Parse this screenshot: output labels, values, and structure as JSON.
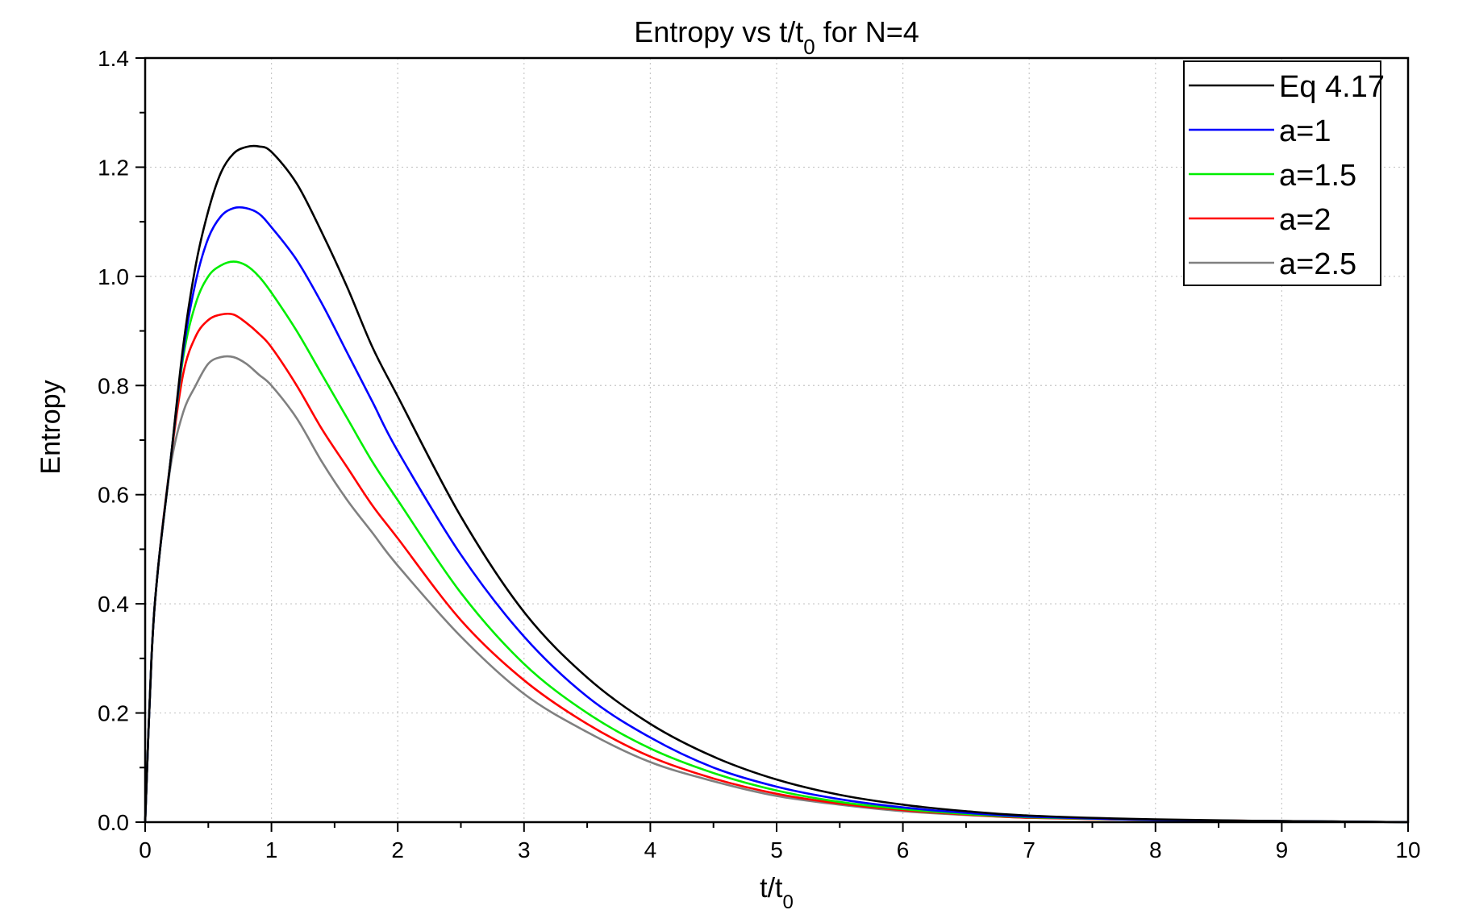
{
  "chart_data": {
    "type": "line",
    "title": "Entropy vs t/t",
    "title_sub": "0",
    "title_suffix": " for N=4",
    "xlabel": "t/t",
    "xlabel_sub": "0",
    "ylabel": "Entropy",
    "xlim": [
      0,
      10
    ],
    "ylim": [
      0,
      1.4
    ],
    "xticks": [
      0,
      1,
      2,
      3,
      4,
      5,
      6,
      7,
      8,
      9,
      10
    ],
    "xtick_labels": [
      "0",
      "1",
      "2",
      "3",
      "4",
      "5",
      "6",
      "7",
      "8",
      "9",
      "10"
    ],
    "yticks": [
      0,
      0.2,
      0.4,
      0.6,
      0.8,
      1.0,
      1.2,
      1.4
    ],
    "ytick_labels": [
      "0.0",
      "0.2",
      "0.4",
      "0.6",
      "0.8",
      "1.0",
      "1.2",
      "1.4"
    ],
    "grid": true,
    "legend_position": "top-right",
    "series": [
      {
        "name": "Eq 4.17",
        "color": "#000000",
        "x": [
          0,
          0.05,
          0.1,
          0.2,
          0.3,
          0.4,
          0.5,
          0.6,
          0.7,
          0.8,
          0.9,
          1.0,
          1.2,
          1.4,
          1.6,
          1.8,
          2.0,
          2.5,
          3.0,
          3.5,
          4.0,
          4.5,
          5.0,
          5.5,
          6.0,
          6.5,
          7.0,
          8.0,
          9.0,
          10.0
        ],
        "y": [
          0,
          0.3,
          0.46,
          0.66,
          0.87,
          1.02,
          1.12,
          1.19,
          1.225,
          1.237,
          1.238,
          1.228,
          1.17,
          1.08,
          0.98,
          0.87,
          0.78,
          0.56,
          0.385,
          0.265,
          0.18,
          0.12,
          0.078,
          0.05,
          0.032,
          0.02,
          0.012,
          0.005,
          0.002,
          0.0
        ]
      },
      {
        "name": "a=1",
        "color": "#0000ff",
        "x": [
          0,
          0.05,
          0.1,
          0.2,
          0.3,
          0.4,
          0.5,
          0.6,
          0.7,
          0.8,
          0.9,
          1.0,
          1.2,
          1.4,
          1.6,
          1.8,
          2.0,
          2.5,
          3.0,
          3.5,
          4.0,
          4.5,
          5.0,
          5.5,
          6.0,
          6.5,
          7.0,
          8.0,
          9.0,
          10.0
        ],
        "y": [
          0,
          0.3,
          0.46,
          0.66,
          0.86,
          0.99,
          1.07,
          1.11,
          1.125,
          1.125,
          1.115,
          1.09,
          1.03,
          0.95,
          0.86,
          0.77,
          0.68,
          0.49,
          0.34,
          0.23,
          0.155,
          0.1,
          0.065,
          0.042,
          0.027,
          0.017,
          0.01,
          0.004,
          0.002,
          0.0
        ]
      },
      {
        "name": "a=1.5",
        "color": "#00ee00",
        "x": [
          0,
          0.05,
          0.1,
          0.2,
          0.3,
          0.4,
          0.5,
          0.6,
          0.7,
          0.8,
          0.9,
          1.0,
          1.2,
          1.4,
          1.6,
          1.8,
          2.0,
          2.5,
          3.0,
          3.5,
          4.0,
          4.5,
          5.0,
          5.5,
          6.0,
          6.5,
          7.0,
          8.0,
          9.0,
          10.0
        ],
        "y": [
          0,
          0.3,
          0.46,
          0.66,
          0.85,
          0.95,
          1.0,
          1.02,
          1.027,
          1.02,
          1.0,
          0.97,
          0.9,
          0.82,
          0.74,
          0.66,
          0.59,
          0.42,
          0.29,
          0.2,
          0.135,
          0.09,
          0.058,
          0.037,
          0.024,
          0.015,
          0.009,
          0.004,
          0.002,
          0.0
        ]
      },
      {
        "name": "a=2",
        "color": "#ff0000",
        "x": [
          0,
          0.05,
          0.1,
          0.2,
          0.3,
          0.4,
          0.5,
          0.6,
          0.7,
          0.8,
          0.9,
          1.0,
          1.2,
          1.4,
          1.6,
          1.8,
          2.0,
          2.5,
          3.0,
          3.5,
          4.0,
          4.5,
          5.0,
          5.5,
          6.0,
          6.5,
          7.0,
          8.0,
          9.0,
          10.0
        ],
        "y": [
          0,
          0.3,
          0.46,
          0.66,
          0.82,
          0.89,
          0.92,
          0.93,
          0.93,
          0.915,
          0.895,
          0.87,
          0.8,
          0.72,
          0.65,
          0.58,
          0.52,
          0.37,
          0.26,
          0.18,
          0.12,
          0.08,
          0.052,
          0.034,
          0.022,
          0.014,
          0.008,
          0.004,
          0.002,
          0.0
        ]
      },
      {
        "name": "a=2.5",
        "color": "#808080",
        "x": [
          0,
          0.05,
          0.1,
          0.2,
          0.3,
          0.4,
          0.5,
          0.6,
          0.7,
          0.8,
          0.9,
          1.0,
          1.2,
          1.4,
          1.6,
          1.8,
          2.0,
          2.5,
          3.0,
          3.5,
          4.0,
          4.5,
          5.0,
          5.5,
          6.0,
          6.5,
          7.0,
          8.0,
          9.0,
          10.0
        ],
        "y": [
          0,
          0.3,
          0.46,
          0.65,
          0.75,
          0.8,
          0.84,
          0.852,
          0.852,
          0.84,
          0.82,
          0.8,
          0.74,
          0.66,
          0.59,
          0.53,
          0.47,
          0.34,
          0.235,
          0.165,
          0.11,
          0.075,
          0.048,
          0.032,
          0.02,
          0.013,
          0.008,
          0.004,
          0.002,
          0.0
        ]
      }
    ]
  }
}
